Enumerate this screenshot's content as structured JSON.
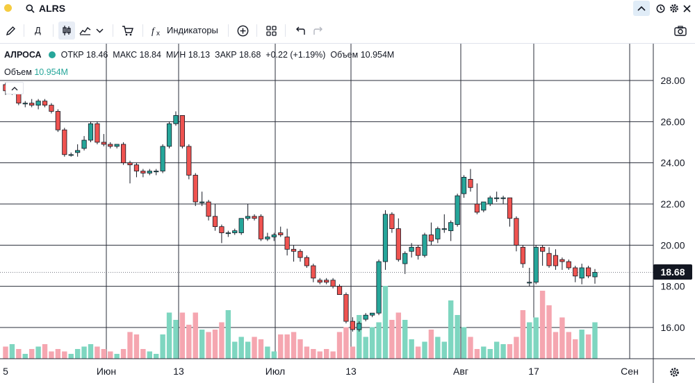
{
  "search": {
    "symbol": "ALRS"
  },
  "toolbar": {
    "indicators_label": "Индикаторы",
    "interval_label": "Д"
  },
  "legend": {
    "name": "АЛРОСА",
    "open": "ОТКР 18.46",
    "high": "МАКС 18.84",
    "low": "МИН 18.13",
    "close": "ЗАКР 18.68",
    "change": "+0.22 (+1.19%)",
    "volume": "Объем 10.954M"
  },
  "volume_legend": {
    "label": "Объем",
    "value": "10.954M"
  },
  "price_badge": "18.68",
  "colors": {
    "up": "#26a69a",
    "down": "#ef5350",
    "up_vol": "#7ed6c0",
    "down_vol": "#f5a6b0"
  },
  "chart_data": {
    "type": "candlestick",
    "symbol": "ALRS",
    "y_axis": {
      "ticks": [
        "28.00",
        "26.00",
        "24.00",
        "22.00",
        "20.00",
        "18.00",
        "16.00"
      ],
      "ylim": [
        14.6,
        29.5
      ]
    },
    "x_axis": {
      "ticks": [
        "5",
        "Июн",
        "13",
        "Июл",
        "13",
        "Авг",
        "17",
        "Сен"
      ]
    },
    "last_price": 18.68,
    "candles": [
      [
        27.8,
        27.9,
        27.3,
        27.5
      ],
      [
        27.5,
        27.9,
        27.3,
        27.7
      ],
      [
        27.7,
        27.9,
        26.8,
        26.9
      ],
      [
        26.9,
        27.0,
        26.7,
        26.9
      ],
      [
        26.9,
        27.1,
        26.7,
        26.8
      ],
      [
        26.8,
        27.1,
        26.6,
        27.0
      ],
      [
        27.0,
        27.1,
        26.7,
        26.8
      ],
      [
        26.8,
        26.9,
        26.4,
        26.5
      ],
      [
        26.5,
        26.6,
        25.5,
        25.6
      ],
      [
        25.6,
        25.7,
        24.3,
        24.4
      ],
      [
        24.4,
        24.5,
        24.3,
        24.4
      ],
      [
        24.5,
        24.9,
        24.3,
        24.6
      ],
      [
        24.7,
        25.3,
        24.6,
        25.1
      ],
      [
        25.1,
        26.0,
        25.0,
        25.9
      ],
      [
        25.9,
        26.0,
        24.9,
        25.0
      ],
      [
        25.0,
        25.4,
        24.8,
        24.9
      ],
      [
        24.9,
        25.0,
        24.7,
        24.8
      ],
      [
        24.8,
        24.9,
        24.7,
        24.9
      ],
      [
        24.9,
        25.0,
        23.9,
        24.0
      ],
      [
        24.0,
        24.1,
        23.0,
        23.9
      ],
      [
        23.9,
        24.0,
        23.3,
        23.6
      ],
      [
        23.6,
        23.7,
        23.3,
        23.5
      ],
      [
        23.5,
        23.7,
        23.4,
        23.6
      ],
      [
        23.6,
        23.7,
        23.4,
        23.6
      ],
      [
        23.6,
        24.9,
        23.5,
        24.8
      ],
      [
        24.8,
        26.0,
        24.7,
        25.9
      ],
      [
        25.9,
        26.5,
        25.8,
        26.3
      ],
      [
        26.3,
        26.3,
        24.7,
        24.8
      ],
      [
        24.8,
        24.9,
        23.2,
        23.4
      ],
      [
        23.4,
        23.5,
        21.9,
        22.1
      ],
      [
        22.1,
        22.6,
        21.9,
        22.1
      ],
      [
        22.1,
        22.2,
        21.2,
        21.4
      ],
      [
        21.4,
        22.0,
        20.7,
        20.9
      ],
      [
        20.9,
        21.0,
        20.1,
        20.6
      ],
      [
        20.6,
        20.7,
        20.4,
        20.6
      ],
      [
        20.6,
        20.8,
        20.5,
        20.7
      ],
      [
        20.6,
        21.3,
        20.5,
        21.3
      ],
      [
        21.3,
        22.0,
        21.2,
        21.4
      ],
      [
        21.4,
        21.5,
        21.2,
        21.3
      ],
      [
        21.4,
        21.5,
        20.2,
        20.3
      ],
      [
        20.3,
        20.6,
        20.2,
        20.4
      ],
      [
        20.4,
        20.6,
        20.2,
        20.5
      ],
      [
        20.6,
        20.9,
        20.4,
        20.5
      ],
      [
        20.4,
        20.8,
        19.5,
        19.8
      ],
      [
        19.8,
        20.0,
        19.2,
        19.7
      ],
      [
        19.7,
        19.8,
        19.2,
        19.4
      ],
      [
        19.4,
        19.5,
        18.9,
        19.0
      ],
      [
        19.0,
        19.1,
        18.2,
        18.4
      ],
      [
        18.3,
        18.4,
        18.1,
        18.2
      ],
      [
        18.3,
        18.4,
        18.1,
        18.2
      ],
      [
        18.3,
        18.4,
        17.9,
        18.0
      ],
      [
        18.0,
        18.1,
        17.6,
        17.6
      ],
      [
        17.6,
        17.7,
        16.2,
        16.3
      ],
      [
        16.3,
        16.5,
        15.8,
        15.9
      ],
      [
        15.9,
        16.3,
        15.8,
        16.2
      ],
      [
        16.4,
        16.7,
        16.3,
        16.6
      ],
      [
        16.6,
        16.7,
        16.5,
        16.7
      ],
      [
        16.7,
        19.3,
        16.6,
        19.2
      ],
      [
        19.2,
        21.7,
        18.8,
        21.5
      ],
      [
        21.5,
        21.6,
        20.6,
        20.8
      ],
      [
        20.8,
        21.3,
        19.2,
        19.3
      ],
      [
        19.1,
        19.7,
        18.6,
        19.6
      ],
      [
        19.7,
        20.1,
        19.4,
        19.9
      ],
      [
        19.9,
        20.0,
        19.3,
        19.5
      ],
      [
        19.5,
        20.6,
        19.4,
        20.5
      ],
      [
        20.5,
        21.1,
        20.0,
        20.2
      ],
      [
        20.3,
        20.9,
        20.1,
        20.8
      ],
      [
        20.8,
        21.5,
        20.6,
        20.8
      ],
      [
        20.7,
        21.2,
        20.2,
        21.1
      ],
      [
        21.0,
        22.5,
        20.9,
        22.4
      ],
      [
        22.5,
        23.4,
        22.3,
        23.3
      ],
      [
        23.2,
        23.7,
        22.6,
        22.8
      ],
      [
        22.0,
        23.0,
        21.5,
        21.6
      ],
      [
        21.7,
        22.1,
        21.6,
        22.1
      ],
      [
        22.0,
        22.4,
        21.9,
        22.3
      ],
      [
        22.3,
        22.6,
        22.1,
        22.3
      ],
      [
        22.3,
        22.4,
        22.0,
        22.3
      ],
      [
        22.3,
        22.3,
        20.9,
        21.3
      ],
      [
        21.3,
        21.4,
        19.7,
        20.0
      ],
      [
        19.9,
        20.0,
        18.9,
        19.1
      ],
      [
        18.2,
        18.9,
        18.0,
        18.2
      ],
      [
        18.2,
        20.0,
        18.1,
        19.9
      ],
      [
        19.9,
        20.0,
        19.0,
        19.7
      ],
      [
        19.6,
        19.9,
        18.9,
        19.0
      ],
      [
        19.5,
        19.8,
        18.8,
        19.0
      ],
      [
        19.3,
        19.4,
        18.8,
        19.2
      ],
      [
        19.2,
        19.3,
        18.8,
        18.9
      ],
      [
        18.9,
        19.0,
        18.2,
        18.5
      ],
      [
        18.4,
        19.1,
        18.1,
        18.9
      ],
      [
        18.9,
        19.0,
        18.4,
        18.5
      ],
      [
        18.46,
        18.84,
        18.13,
        18.68
      ]
    ],
    "volume": [
      5,
      6,
      4,
      2,
      4,
      5,
      6,
      3,
      4,
      3,
      2,
      4,
      5,
      6,
      5,
      4,
      3,
      2,
      4,
      11,
      10,
      4,
      3,
      2,
      10,
      19,
      16,
      19,
      14,
      19,
      12,
      11,
      12,
      15,
      20,
      7,
      9,
      7,
      9,
      8,
      5,
      3,
      10,
      10,
      11,
      8,
      5,
      4,
      3,
      4,
      3,
      11,
      13,
      5,
      18,
      9,
      13,
      15,
      30,
      16,
      19,
      16,
      8,
      5,
      7,
      12,
      9,
      7,
      24,
      18,
      13,
      9,
      4,
      5,
      4,
      7,
      6,
      6,
      9,
      20,
      15,
      17,
      28,
      22,
      11,
      17,
      11,
      8,
      12,
      10,
      15
    ]
  }
}
